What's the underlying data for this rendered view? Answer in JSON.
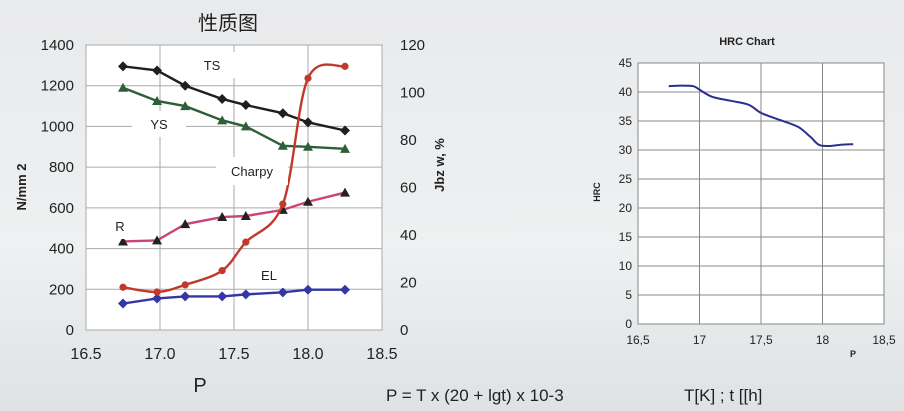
{
  "chart_data": [
    {
      "type": "line",
      "title": "性质图",
      "xlabel": "P",
      "ylabel_left": "N/mm 2",
      "ylabel_right": "Jbz w, %",
      "xlim": [
        16.5,
        18.5
      ],
      "xticks": [
        "16.5",
        "17.0",
        "17.5",
        "18.0",
        "18.5"
      ],
      "ylim_left": [
        0,
        1400
      ],
      "yticks_left": [
        "0",
        "200",
        "400",
        "600",
        "800",
        "1000",
        "1200",
        "1400"
      ],
      "ylim_right": [
        0,
        120
      ],
      "yticks_right": [
        "0",
        "20",
        "40",
        "60",
        "80",
        "100",
        "120"
      ],
      "grid": true,
      "series": [
        {
          "name": "TS",
          "axis": "left",
          "color": "#1f1f1f",
          "marker": "diamond",
          "x": [
            16.75,
            16.98,
            17.17,
            17.42,
            17.58,
            17.83,
            18.0,
            18.25
          ],
          "values": [
            1295,
            1275,
            1200,
            1135,
            1105,
            1065,
            1020,
            980
          ]
        },
        {
          "name": "YS",
          "axis": "left",
          "color": "#2e5e3a",
          "marker": "triangle",
          "x": [
            16.75,
            16.98,
            17.17,
            17.42,
            17.58,
            17.83,
            18.0,
            18.25
          ],
          "values": [
            1190,
            1125,
            1100,
            1030,
            1000,
            905,
            900,
            890
          ]
        },
        {
          "name": "R",
          "axis": "left",
          "color": "#c8447a",
          "marker": "triangle",
          "x": [
            16.75,
            16.98,
            17.17,
            17.42,
            17.58,
            17.83,
            18.0,
            18.25
          ],
          "values": [
            435,
            440,
            520,
            555,
            560,
            590,
            630,
            675
          ]
        },
        {
          "name": "EL",
          "axis": "left",
          "color": "#3436a6",
          "marker": "diamond",
          "x": [
            16.75,
            16.98,
            17.17,
            17.42,
            17.58,
            17.83,
            18.0,
            18.25
          ],
          "values": [
            130,
            155,
            165,
            165,
            175,
            185,
            198,
            198
          ]
        },
        {
          "name": "Charpy",
          "axis": "right",
          "color": "#c0392b",
          "marker": "circle",
          "x": [
            16.75,
            16.98,
            17.17,
            17.42,
            17.58,
            17.83,
            18.0,
            18.25
          ],
          "values": [
            18,
            16,
            19,
            25,
            37,
            53,
            106,
            111
          ]
        }
      ],
      "labels": [
        "TS",
        "YS",
        "Charpy",
        "R",
        "EL"
      ]
    },
    {
      "type": "line",
      "title": "HRC Chart",
      "xlabel": "P",
      "ylabel": "HRC",
      "xlim": [
        16.5,
        18.5
      ],
      "xticks": [
        "16,5",
        "17",
        "17,5",
        "18",
        "18,5"
      ],
      "ylim": [
        0,
        45
      ],
      "yticks": [
        "0",
        "5",
        "10",
        "15",
        "20",
        "25",
        "30",
        "35",
        "40",
        "45"
      ],
      "grid": true,
      "series": [
        {
          "color": "#2b2f8f",
          "x": [
            16.75,
            16.85,
            16.95,
            17.0,
            17.1,
            17.25,
            17.4,
            17.5,
            17.65,
            17.8,
            17.9,
            17.97,
            18.05,
            18.15,
            18.25
          ],
          "values": [
            41,
            41.1,
            41,
            40.4,
            39.2,
            38.5,
            37.8,
            36.4,
            35.2,
            34,
            32.3,
            30.9,
            30.7,
            30.9,
            31
          ]
        }
      ]
    }
  ],
  "footer": {
    "formula": "P = T x (20 + lgt) x 10-3",
    "units": "T[K] ; t [[h]"
  }
}
